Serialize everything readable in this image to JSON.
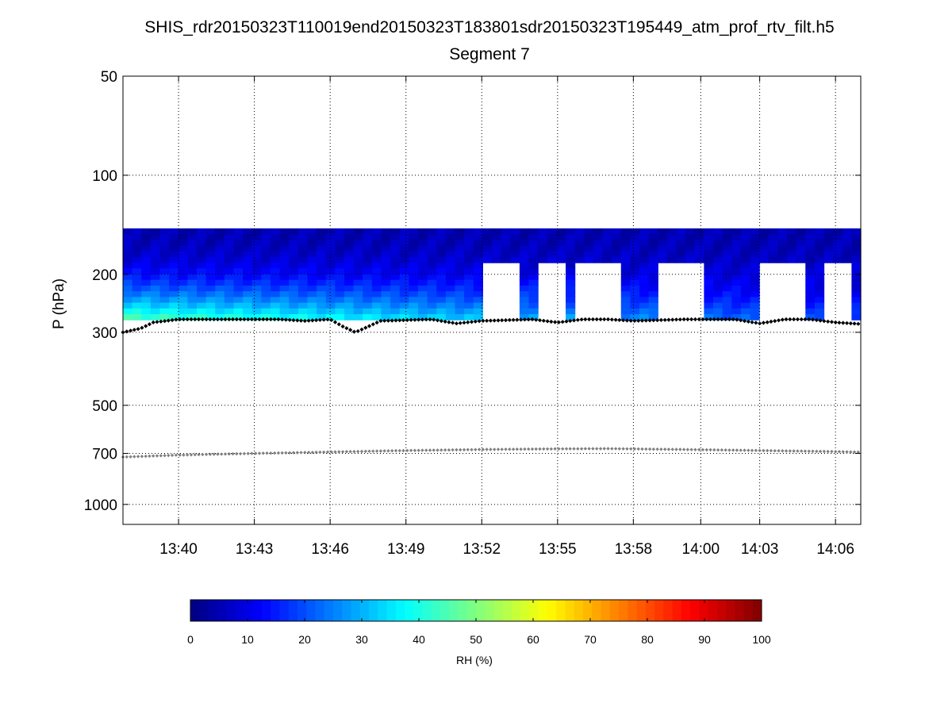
{
  "figure": {
    "title_line1": "SHIS_rdr20150323T110019end20150323T183801sdr20150323T195449_atm_prof_rtv_filt.h5",
    "title_line2": "Segment 7"
  },
  "chart_data": {
    "type": "heatmap",
    "title": "SHIS_rdr20150323T110019end20150323T183801sdr20150323T195449_atm_prof_rtv_filt.h5",
    "subtitle": "Segment 7",
    "xlabel": "",
    "ylabel": "P (hPa)",
    "x_time_range": [
      "13:37:48",
      "14:07:00"
    ],
    "x_tick_labels": [
      "13:40",
      "13:43",
      "13:46",
      "13:49",
      "13:52",
      "13:55",
      "13:58",
      "14:00",
      "14:03",
      "14:06"
    ],
    "x_tick_times": [
      "13:40:00",
      "13:43:00",
      "13:46:00",
      "13:49:00",
      "13:52:00",
      "13:55:00",
      "13:58:00",
      "14:00:40",
      "14:03:00",
      "14:06:00"
    ],
    "y_scale": "log",
    "y_reversed": true,
    "ylim": [
      50,
      1150
    ],
    "y_ticks": [
      50,
      100,
      200,
      300,
      500,
      700,
      1000
    ],
    "grid": true,
    "colorbar": {
      "label": "RH (%)",
      "range": [
        0,
        100
      ],
      "ticks": [
        0,
        10,
        20,
        30,
        40,
        50,
        60,
        70,
        80,
        90,
        100
      ],
      "colormap": "jet"
    },
    "rh_field": {
      "pressure_top": 145,
      "pressure_bottom": 275,
      "rh_top": 5,
      "rh_bottom_start": 46,
      "rh_bottom_end": 18,
      "missing_pressure_top": 186,
      "missing_time_spans": [
        [
          "13:52:00",
          "13:53:30"
        ],
        [
          "13:54:15",
          "13:55:30"
        ],
        [
          "13:55:50",
          "13:57:20"
        ],
        [
          "13:58:50",
          "14:00:50"
        ],
        [
          "14:03:10",
          "14:04:50"
        ],
        [
          "14:05:30",
          "14:06:40"
        ]
      ]
    },
    "series": [
      {
        "marker": "black diamonds",
        "times": [
          "13:37:48",
          "13:38:30",
          "13:39:00",
          "13:40:00",
          "13:42:00",
          "13:44:00",
          "13:45:00",
          "13:46:00",
          "13:46:30",
          "13:47:00",
          "13:48:00",
          "13:50:00",
          "13:51:00",
          "13:52:00",
          "13:54:00",
          "13:55:00",
          "13:56:00",
          "13:57:00",
          "13:58:00",
          "14:00:00",
          "14:02:00",
          "14:03:00",
          "14:04:00",
          "14:05:00",
          "14:06:00",
          "14:07:00"
        ],
        "pressure": [
          300,
          292,
          280,
          274,
          274,
          274,
          277,
          274,
          288,
          300,
          277,
          274,
          282,
          277,
          274,
          280,
          274,
          274,
          277,
          274,
          274,
          282,
          274,
          274,
          280,
          283
        ]
      },
      {
        "marker": "gray diamonds",
        "times": [
          "13:37:48",
          "13:40:00",
          "13:43:00",
          "13:46:00",
          "13:49:00",
          "13:52:00",
          "13:55:00",
          "13:57:00",
          "14:00:00",
          "14:03:00",
          "14:06:00",
          "14:07:00"
        ],
        "pressure": [
          718,
          708,
          700,
          693,
          686,
          681,
          678,
          677,
          681,
          686,
          691,
          694
        ]
      }
    ]
  }
}
